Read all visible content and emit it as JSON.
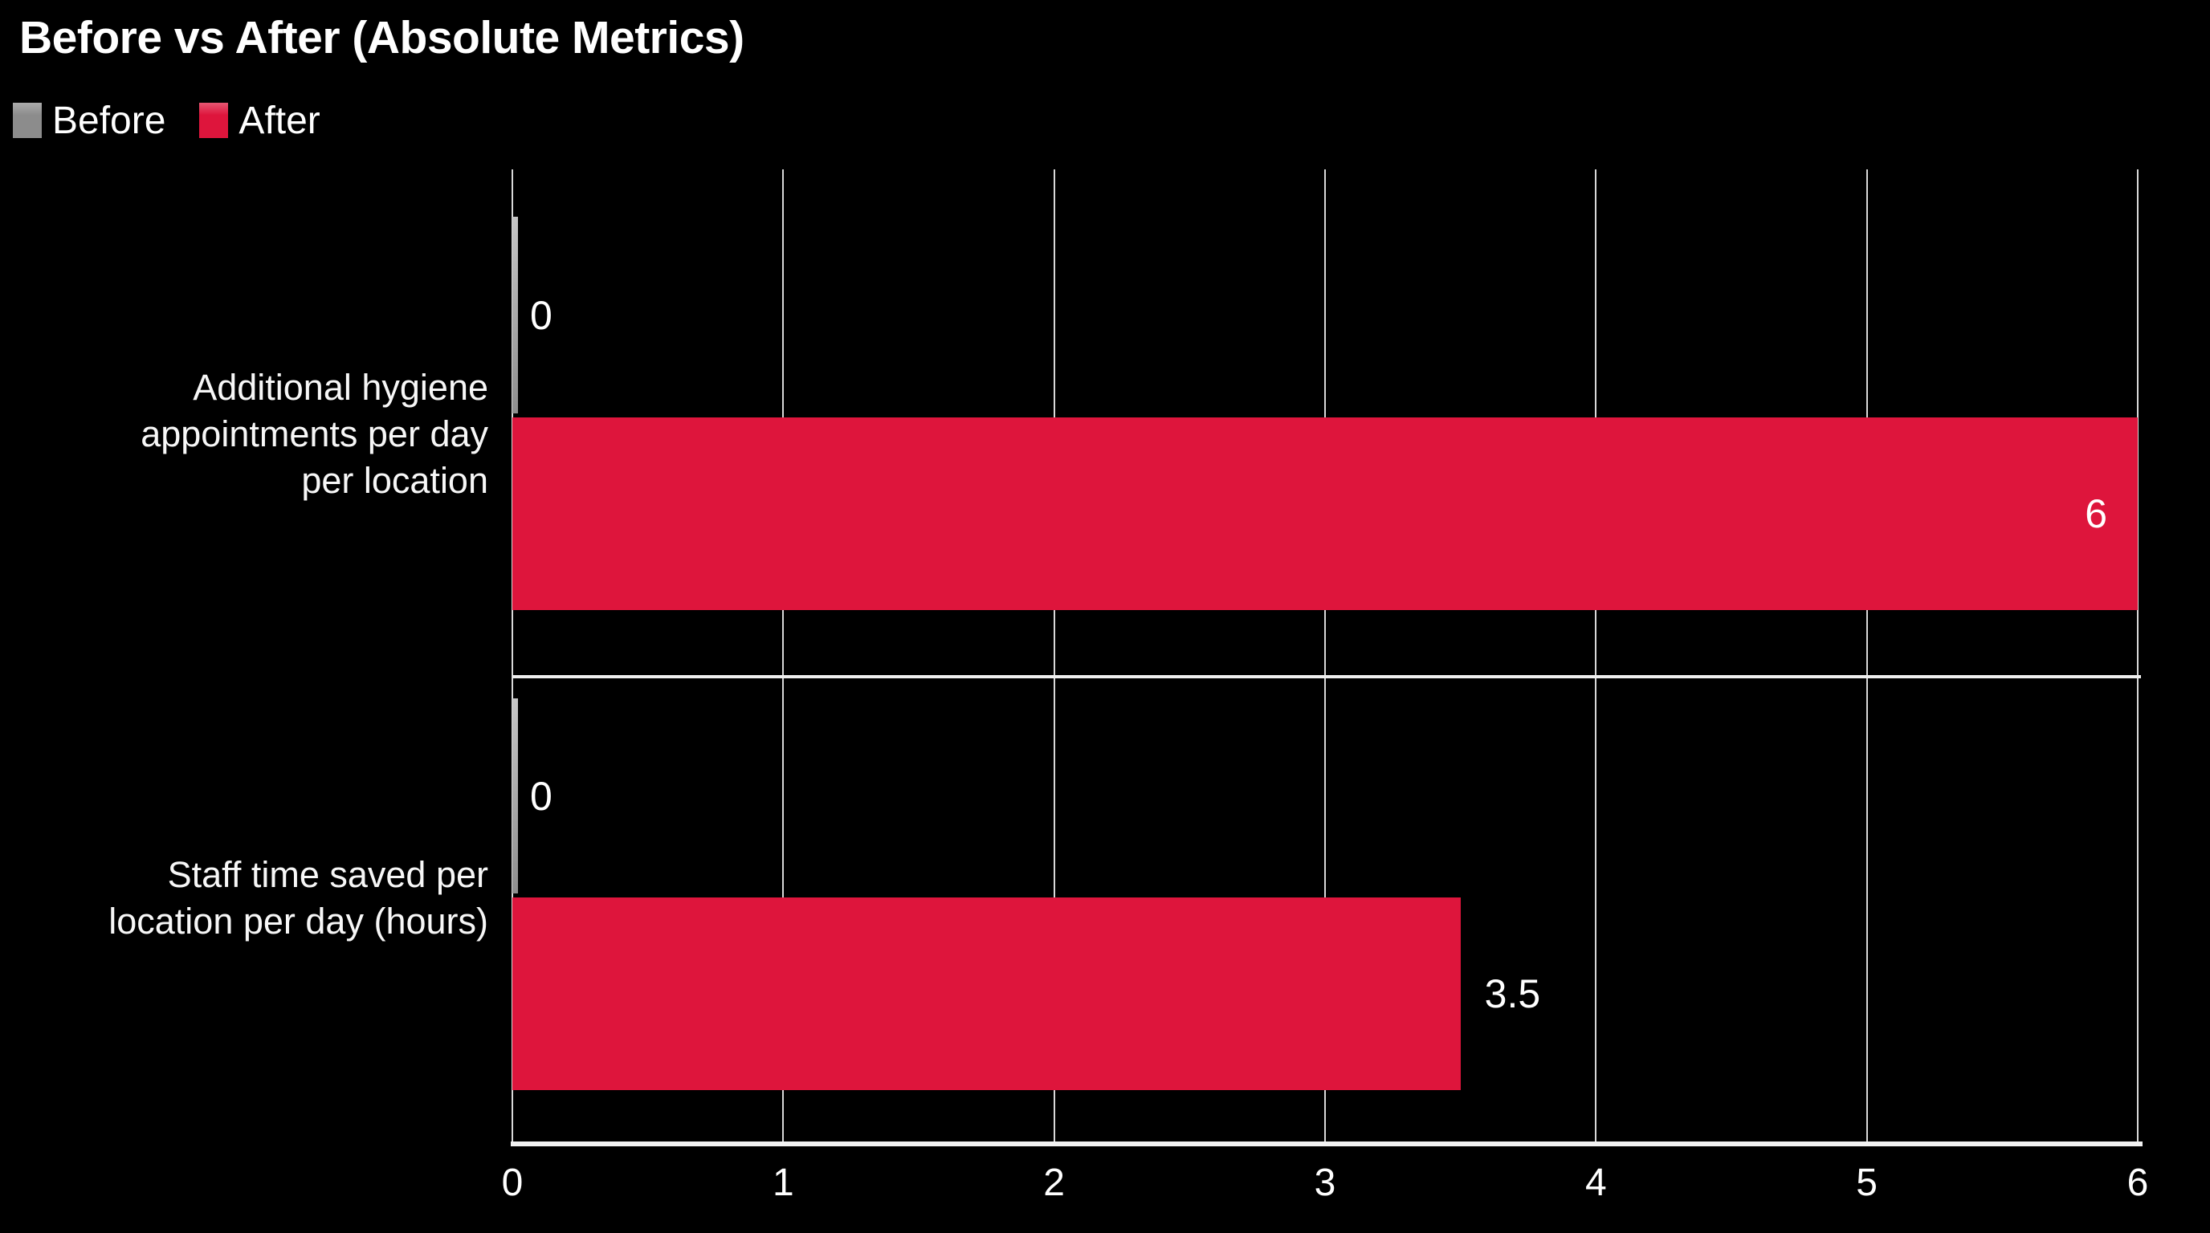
{
  "title": "Before vs After (Absolute Metrics)",
  "legend": {
    "items": [
      {
        "label": "Before",
        "color": "#8c8c8c"
      },
      {
        "label": "After",
        "color": "#de153c"
      }
    ]
  },
  "colors": {
    "background": "#000000",
    "bar_before": "#acacac",
    "bar_after": "#de153c",
    "grid": "#d9d9d9",
    "separator": "#efefef",
    "axis": "#f2f2f2",
    "text": "#ffffff"
  },
  "chart_data": {
    "type": "bar",
    "orientation": "horizontal",
    "title": "Before vs After (Absolute Metrics)",
    "categories": [
      "Additional hygiene appointments per day per location",
      "Staff time saved per location per day (hours)"
    ],
    "category_display_lines": [
      [
        "Additional hygiene",
        "appointments per day",
        "per location"
      ],
      [
        "Staff time saved per",
        "location per day (hours)"
      ]
    ],
    "series": [
      {
        "name": "Before",
        "color": "#8c8c8c",
        "values": [
          0,
          0
        ]
      },
      {
        "name": "After",
        "color": "#de153c",
        "values": [
          6,
          3.5
        ]
      }
    ],
    "value_labels": [
      [
        "0",
        "6"
      ],
      [
        "0",
        "3.5"
      ]
    ],
    "xlim": [
      0,
      6
    ],
    "x_ticks": [
      0,
      1,
      2,
      3,
      4,
      5,
      6
    ],
    "grid": true,
    "legend_position": "top-left",
    "background": "#000000"
  }
}
